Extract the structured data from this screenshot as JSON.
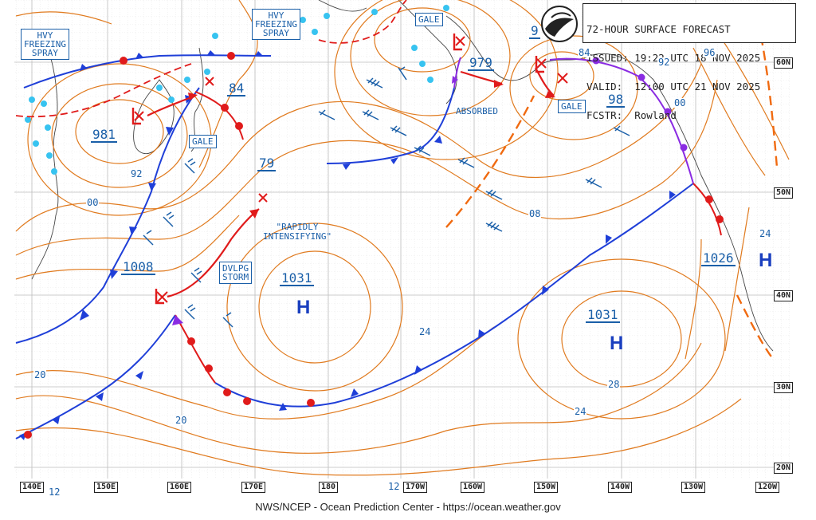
{
  "header": {
    "line1": "72-HOUR SURFACE FORECAST",
    "line2": "ISSUED: 19:22 UTC 18 NOV 2025",
    "line3": "VALID:  12:00 UTC 21 NOV 2025",
    "line4": "FCSTR:  Rowland"
  },
  "footer": "NWS/NCEP - Ocean Prediction Center - https://ocean.weather.gov",
  "colors": {
    "isobar": "#e07a1e",
    "cold_front": "#1f3fd8",
    "warm_front": "#e01b1b",
    "occluded_front": "#8a2be2",
    "text": "#1a5fa8",
    "ice": "#37c3f0",
    "trough": "#f06a10"
  },
  "longitudes": [
    "140E",
    "150E",
    "160E",
    "170E",
    "180",
    "170W",
    "160W",
    "150W",
    "140W",
    "130W",
    "120W"
  ],
  "latitudes": [
    "60N",
    "50N",
    "40N",
    "30N",
    "20N"
  ],
  "boxes": {
    "hvy_west": "HVY\nFREEZING\nSPRAY",
    "hvy_north": "HVY\nFREEZING\nSPRAY",
    "gale_north": "GALE",
    "gale_west": "GALE",
    "gale_east": "GALE",
    "dvlpg": "DVLPG\nSTORM"
  },
  "labels": {
    "absorbed": "ABSORBED",
    "rapid": "\"RAPIDLY\nINTENSIFYING\""
  },
  "pressures": {
    "p981": "981",
    "p84": "84",
    "p79": "79",
    "p979": "979",
    "p98": "98",
    "p1008": "1008",
    "p1031_w": "1031",
    "p1031_e": "1031",
    "p1026": "1026",
    "p9": "9"
  },
  "highs": {
    "h1": "H",
    "h2": "H",
    "h3": "H"
  },
  "isobar_labels": {
    "i92w": "92",
    "i00w": "00",
    "i20": "20",
    "i20b": "20",
    "i24c": "24",
    "i24e": "24",
    "i28": "28",
    "i08": "08",
    "i84": "84",
    "i92e": "92",
    "i96": "96",
    "i00e": "00",
    "i24r": "24",
    "i12": "12",
    "i12b": "12"
  }
}
